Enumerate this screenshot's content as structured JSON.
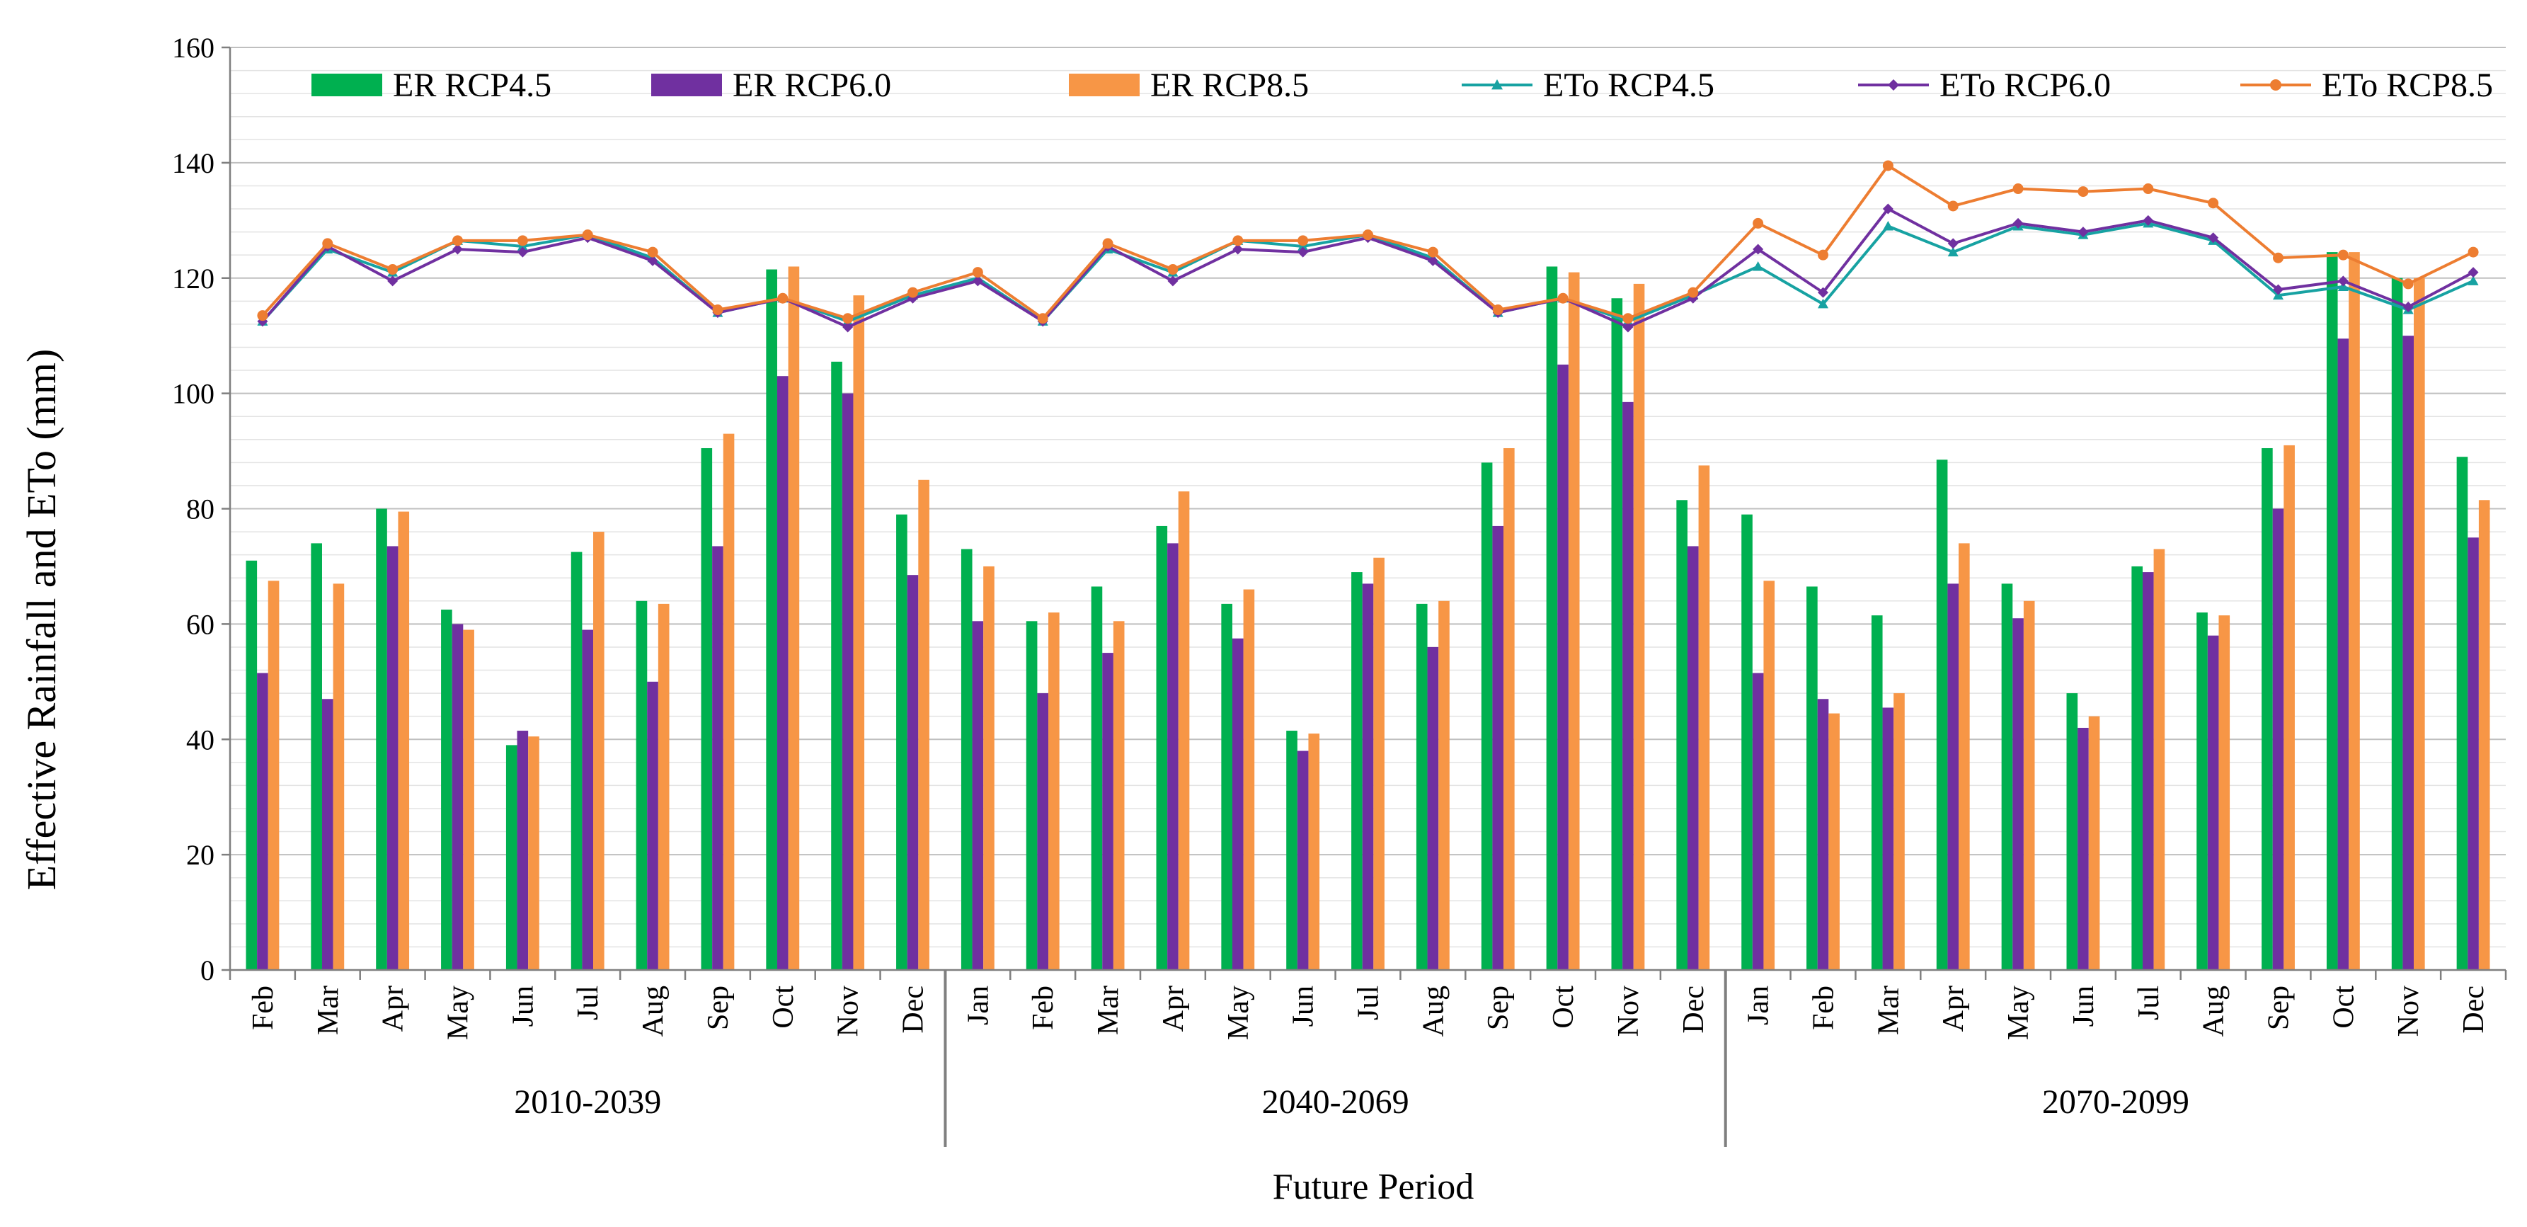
{
  "chart_data": {
    "type": "bar",
    "title": "",
    "ylabel": "Effective Rainfall and ETo (mm)",
    "xlabel": "Future Period",
    "ylim": [
      0,
      160
    ],
    "yticks": [
      "0",
      "20",
      "40",
      "60",
      "80",
      "100",
      "120",
      "140",
      "160"
    ],
    "grid": true,
    "legend_position": "top",
    "groups": [
      {
        "label": "2010-2039",
        "months": [
          "Feb",
          "Mar",
          "Apr",
          "May",
          "Jun",
          "Jul",
          "Aug",
          "Sep",
          "Oct",
          "Nov",
          "Dec"
        ]
      },
      {
        "label": "2040-2069",
        "months": [
          "Jan",
          "Feb",
          "Mar",
          "Apr",
          "May",
          "Jun",
          "Jul",
          "Aug",
          "Sep",
          "Oct",
          "Nov",
          "Dec"
        ]
      },
      {
        "label": "2070-2099",
        "months": [
          "Jan",
          "Feb",
          "Mar",
          "Apr",
          "May",
          "Jun",
          "Jul",
          "Aug",
          "Sep",
          "Oct",
          "Nov",
          "Dec"
        ]
      }
    ],
    "bar_series": [
      {
        "name": "ER RCP4.5",
        "color": "#00b050",
        "values": [
          71,
          74,
          80,
          62.5,
          39,
          72.5,
          64,
          90.5,
          121.5,
          105.5,
          79,
          73,
          60.5,
          66.5,
          77,
          63.5,
          41.5,
          69,
          63.5,
          88,
          122,
          116.5,
          81.5,
          79,
          66.5,
          61.5,
          88.5,
          67,
          48,
          70,
          62,
          90.5,
          124.5,
          120,
          89
        ]
      },
      {
        "name": "ER RCP6.0",
        "color": "#7030a0",
        "values": [
          51.5,
          47,
          73.5,
          60,
          41.5,
          59,
          50,
          73.5,
          103,
          100,
          68.5,
          60.5,
          48,
          55,
          74,
          57.5,
          38,
          67,
          56,
          77,
          105,
          98.5,
          73.5,
          51.5,
          47,
          45.5,
          67,
          61,
          42,
          69,
          58,
          80,
          109.5,
          110,
          75
        ]
      },
      {
        "name": "ER RCP8.5",
        "color": "#f79646",
        "values": [
          67.5,
          67,
          79.5,
          59,
          40.5,
          76,
          63.5,
          93,
          122,
          117,
          85,
          70,
          62,
          60.5,
          83,
          66,
          41,
          71.5,
          64,
          90.5,
          121,
          119,
          87.5,
          67.5,
          44.5,
          48,
          74,
          64,
          44,
          73,
          61.5,
          91,
          124.5,
          120,
          81.5
        ]
      }
    ],
    "line_series": [
      {
        "name": "ETo RCP4.5",
        "color": "#17a2a2",
        "marker": "triangle",
        "values": [
          112.5,
          125,
          121,
          126.5,
          125.5,
          127.5,
          123.5,
          114,
          116.5,
          112.5,
          117,
          120,
          112.5,
          125,
          121,
          126.5,
          125.5,
          127.5,
          123.5,
          114,
          116.5,
          112.5,
          117,
          122,
          115.5,
          129,
          124.5,
          129,
          127.5,
          129.5,
          126.5,
          117,
          118.5,
          114.5,
          119.5
        ]
      },
      {
        "name": "ETo RCP6.0",
        "color": "#7030a0",
        "marker": "diamond",
        "values": [
          112.5,
          125.5,
          119.5,
          125,
          124.5,
          127,
          123,
          114,
          116.5,
          111.5,
          116.5,
          119.5,
          112.5,
          125.5,
          119.5,
          125,
          124.5,
          127,
          123,
          114,
          116.5,
          111.5,
          116.5,
          125,
          117.5,
          132,
          126,
          129.5,
          128,
          130,
          127,
          118,
          119.5,
          115,
          121
        ]
      },
      {
        "name": "ETo RCP8.5",
        "color": "#ed7d31",
        "marker": "circle",
        "values": [
          113.5,
          126,
          121.5,
          126.5,
          126.5,
          127.5,
          124.5,
          114.5,
          116.5,
          113,
          117.5,
          121,
          113,
          126,
          121.5,
          126.5,
          126.5,
          127.5,
          124.5,
          114.5,
          116.5,
          113,
          117.5,
          129.5,
          124,
          139.5,
          132.5,
          135.5,
          135,
          135.5,
          133,
          123.5,
          124,
          119,
          124.5
        ]
      }
    ]
  }
}
